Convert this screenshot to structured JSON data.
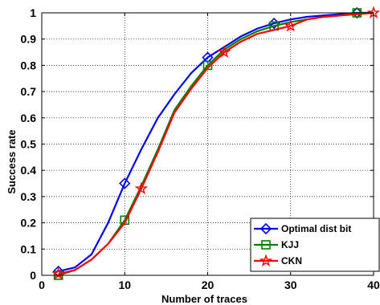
{
  "chart_data": {
    "type": "line",
    "xlabel": "Number of traces",
    "ylabel": "Success rate",
    "xlim": [
      0,
      40
    ],
    "ylim": [
      0,
      1
    ],
    "x_ticks": [
      0,
      10,
      20,
      30,
      40
    ],
    "y_ticks": [
      0,
      0.1,
      0.2,
      0.3,
      0.4,
      0.5,
      0.6,
      0.7,
      0.8,
      0.9,
      1
    ],
    "grid": true,
    "legend_position": "bottom-right",
    "series": [
      {
        "name": "Optimal dist bit",
        "color": "#0000ff",
        "marker": "diamond",
        "x": [
          2,
          4,
          6,
          8,
          10,
          12,
          14,
          16,
          18,
          20,
          22,
          24,
          26,
          28,
          30,
          32,
          34,
          36,
          38,
          40
        ],
        "y": [
          0.015,
          0.03,
          0.08,
          0.2,
          0.35,
          0.48,
          0.6,
          0.69,
          0.77,
          0.83,
          0.87,
          0.91,
          0.94,
          0.96,
          0.975,
          0.985,
          0.99,
          0.995,
          1.0,
          1.0
        ],
        "marker_x": [
          2,
          10,
          20,
          28,
          38
        ],
        "marker_y": [
          0.015,
          0.35,
          0.83,
          0.96,
          1.0
        ]
      },
      {
        "name": "KJJ",
        "color": "#008000",
        "marker": "square",
        "x": [
          2,
          4,
          6,
          8,
          10,
          12,
          14,
          16,
          18,
          20,
          22,
          24,
          26,
          28,
          30,
          32,
          34,
          36,
          38,
          40
        ],
        "y": [
          0.0,
          0.02,
          0.06,
          0.12,
          0.21,
          0.34,
          0.48,
          0.63,
          0.72,
          0.8,
          0.86,
          0.9,
          0.93,
          0.95,
          0.965,
          0.975,
          0.985,
          0.99,
          1.0,
          1.0
        ],
        "marker_x": [
          2,
          10,
          20,
          28,
          38
        ],
        "marker_y": [
          0.0,
          0.21,
          0.8,
          0.95,
          1.0
        ]
      },
      {
        "name": "CKN",
        "color": "#ff0000",
        "marker": "star",
        "x": [
          2,
          4,
          6,
          8,
          10,
          12,
          14,
          16,
          18,
          20,
          22,
          24,
          26,
          28,
          30,
          32,
          34,
          36,
          38,
          40
        ],
        "y": [
          0.005,
          0.02,
          0.06,
          0.12,
          0.2,
          0.33,
          0.47,
          0.62,
          0.71,
          0.79,
          0.85,
          0.89,
          0.92,
          0.935,
          0.95,
          0.975,
          0.985,
          0.99,
          0.995,
          1.0
        ],
        "marker_x": [
          2,
          12,
          22,
          30,
          40
        ],
        "marker_y": [
          0.005,
          0.33,
          0.85,
          0.95,
          1.0
        ]
      }
    ]
  }
}
